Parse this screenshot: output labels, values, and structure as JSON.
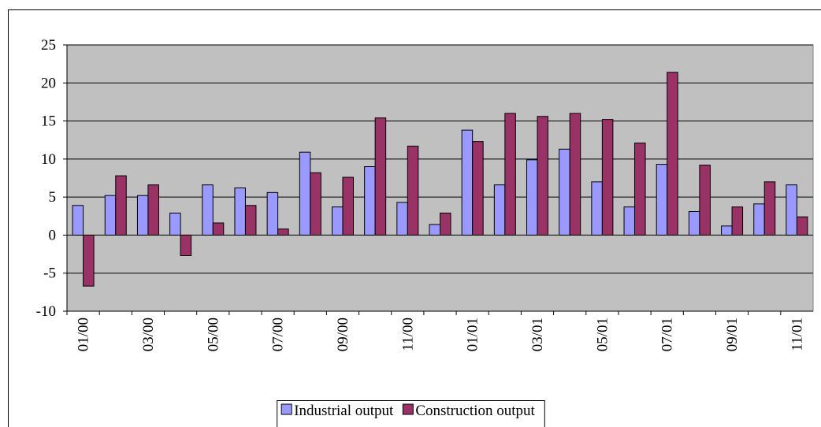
{
  "chart_data": {
    "type": "bar",
    "categories": [
      "01/00",
      null,
      "03/00",
      null,
      "05/00",
      null,
      "07/00",
      null,
      "09/00",
      null,
      "11/00",
      null,
      "01/01",
      null,
      "03/01",
      null,
      "05/01",
      null,
      "07/01",
      null,
      "09/01",
      null,
      "11/01"
    ],
    "series": [
      {
        "name": "Industrial output",
        "color": "#9999ff",
        "values": [
          3.9,
          5.2,
          5.2,
          2.9,
          6.6,
          6.2,
          5.6,
          10.9,
          3.7,
          9.0,
          4.3,
          1.4,
          13.8,
          6.6,
          9.9,
          11.3,
          7.0,
          3.7,
          9.3,
          3.1,
          1.2,
          4.1,
          6.6
        ]
      },
      {
        "name": "Construction output",
        "color": "#993366",
        "values": [
          -6.7,
          7.8,
          6.6,
          -2.7,
          1.6,
          3.9,
          0.8,
          8.2,
          7.6,
          15.4,
          11.7,
          2.9,
          12.3,
          16.0,
          15.6,
          16.0,
          15.2,
          12.1,
          21.4,
          9.2,
          3.7,
          7.0,
          2.4
        ]
      }
    ],
    "ylim": [
      -10,
      25
    ],
    "yticks": [
      -10,
      -5,
      0,
      5,
      10,
      15,
      20,
      25
    ],
    "grid": true,
    "legend": "bottom",
    "background": "#c0c0c0"
  }
}
